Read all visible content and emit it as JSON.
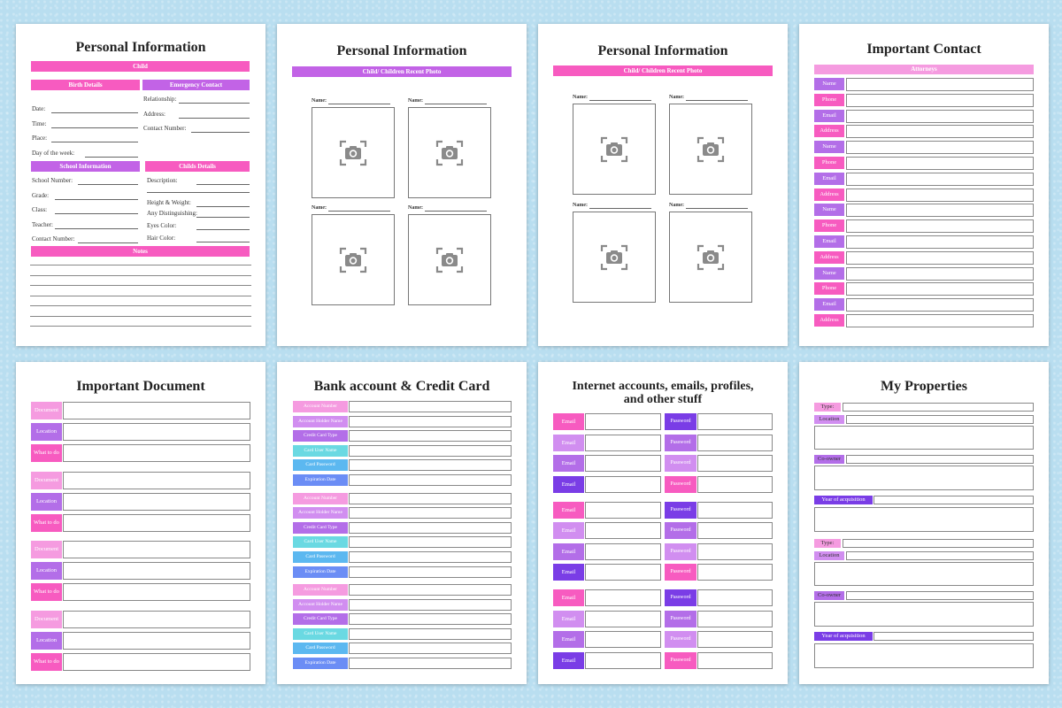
{
  "colors": {
    "background": "#b9def0",
    "pink": "#f75bc0",
    "violet": "#c263e6",
    "light_pink": "#f59be0",
    "purple": "#7a3de6",
    "cyan": "#6ad9e2",
    "blue": "#6b8df5"
  },
  "p1": {
    "title": "Personal Information",
    "child_bar": "Child",
    "birth_bar": "Birth Details",
    "emergency_bar": "Emergency Contact",
    "birth_fields": [
      "Date:",
      "Time:",
      "Place:",
      "Day of the week:"
    ],
    "emergency_fields": [
      "Relationship:",
      "Address:",
      "Contact Number:"
    ],
    "school_bar": "School Information",
    "childs_bar": "Childs Details",
    "school_fields": [
      "School Number:",
      "Grade:",
      "Class:",
      "Teacher:",
      "Contact Number:"
    ],
    "childs_fields": [
      "Description:",
      "Height & Weight:",
      "Any Distinguishing:",
      "Eyes Color:",
      "Hair Color:"
    ],
    "notes_bar": "Notes"
  },
  "p2": {
    "title": "Personal Information",
    "bar": "Child/ Children Recent Photo",
    "name_label": "Name:",
    "camera_icon": "camera-icon"
  },
  "p3": {
    "title": "Personal Information",
    "bar": "Child/ Children Recent Photo",
    "name_label": "Name:"
  },
  "p4": {
    "title": "Important Contact",
    "bar": "Attorneys",
    "rows": [
      "Name",
      "Phone",
      "Email",
      "Address",
      "Name",
      "Phone",
      "Email",
      "Address",
      "Name",
      "Phone",
      "Email",
      "Address",
      "Name",
      "Phone",
      "Email",
      "Address"
    ]
  },
  "p5": {
    "title": "Important Document",
    "rows": [
      "Document",
      "Location",
      "What to do",
      "Document",
      "Location",
      "What to do",
      "Document",
      "Location",
      "What to do",
      "Document",
      "Location",
      "What to do"
    ]
  },
  "p6": {
    "title": "Bank account & Credit Card",
    "rows": [
      "Account Number",
      "Account Holder Name",
      "Credit Card Type",
      "Card User Name",
      "Card Password",
      "Expiration Date",
      "Account Number",
      "Account Holder Name",
      "Credit Card Type",
      "Card User Name",
      "Card Password",
      "Expiration Date",
      "Account Number",
      "Account Holder Name",
      "Credit Card Type",
      "Card User Name",
      "Card Password",
      "Expiration Date"
    ]
  },
  "p7": {
    "title_line1": "Internet accounts, emails, profiles,",
    "title_line2": "and other stuff",
    "email_label": "Email",
    "password_label": "Password"
  },
  "p8": {
    "title": "My Properties",
    "type_label": "Type:",
    "location_label": "Location",
    "coowner_label": "Co-owner",
    "year_label": "Year of acquisition"
  }
}
